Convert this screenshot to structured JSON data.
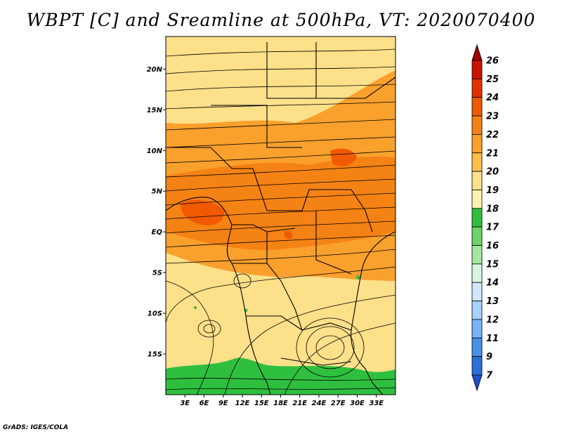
{
  "title": "WBPT [C] and Sreamline at 500hPa, VT: 2020070400",
  "footer": "GrADS: IGES/COLA",
  "map": {
    "lon_range": [
      0,
      36
    ],
    "lat_range": [
      -20,
      24
    ],
    "lat_ticks": [
      "20N",
      "15N",
      "10N",
      "5N",
      "EQ",
      "5S",
      "10S",
      "15S"
    ],
    "lon_ticks": [
      "3E",
      "6E",
      "9E",
      "12E",
      "15E",
      "18E",
      "21E",
      "24E",
      "27E",
      "30E",
      "33E"
    ],
    "variable": "Wet-bulb potential temperature (shaded) and streamlines",
    "level": "500hPa",
    "valid_time": "2020070400"
  },
  "colorbar": {
    "labels": [
      "26",
      "25",
      "24",
      "23",
      "22",
      "21",
      "20",
      "19",
      "18",
      "17",
      "16",
      "15",
      "14",
      "13",
      "12",
      "11",
      "9",
      "7"
    ],
    "colors": [
      "#a50000",
      "#c81400",
      "#e03200",
      "#f05a00",
      "#f58214",
      "#faa02d",
      "#fcbf48",
      "#fde08a",
      "#fdf2b0",
      "#2fbf3f",
      "#6fd36a",
      "#a6e6a0",
      "#d8f5e0",
      "#cfe8ff",
      "#a6d0ff",
      "#78b4f5",
      "#4a90e6",
      "#2d6fd6",
      "#1e50c8"
    ]
  }
}
